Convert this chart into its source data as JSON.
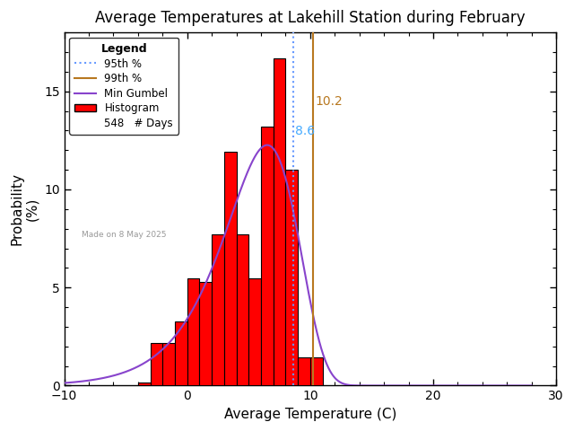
{
  "title": "Average Temperatures at Lakehill Station during February",
  "xlabel": "Average Temperature (C)",
  "ylabel1": "Probability",
  "ylabel2": "(%)",
  "xlim": [
    -10,
    30
  ],
  "ylim": [
    0,
    18
  ],
  "yticks": [
    0,
    5,
    10,
    15
  ],
  "xticks": [
    -10,
    0,
    10,
    20,
    30
  ],
  "bin_edges": [
    -4,
    -3,
    -2,
    -1,
    0,
    1,
    2,
    3,
    4,
    5,
    6,
    7,
    8,
    9,
    10,
    11
  ],
  "bin_heights": [
    0.18,
    2.19,
    2.19,
    3.29,
    5.48,
    5.3,
    7.69,
    11.9,
    7.69,
    5.48,
    13.19,
    16.67,
    11.0,
    1.46,
    1.46,
    0.0
  ],
  "percentile_95": 8.6,
  "percentile_99": 10.2,
  "percentile_95_color": "#6699ff",
  "percentile_99_color": "#b87820",
  "histogram_color": "#ff0000",
  "histogram_edge_color": "#000000",
  "gumbel_color": "#8844cc",
  "n_days": 548,
  "made_on": "Made on 8 May 2025",
  "made_on_color": "#999999",
  "gumbel_mu": 6.5,
  "gumbel_beta": 3.0,
  "background_color": "#ffffff",
  "title_fontsize": 12,
  "axis_fontsize": 11,
  "tick_fontsize": 10,
  "label_10_2_color": "#b87820",
  "label_8_6_color": "#44aaff"
}
